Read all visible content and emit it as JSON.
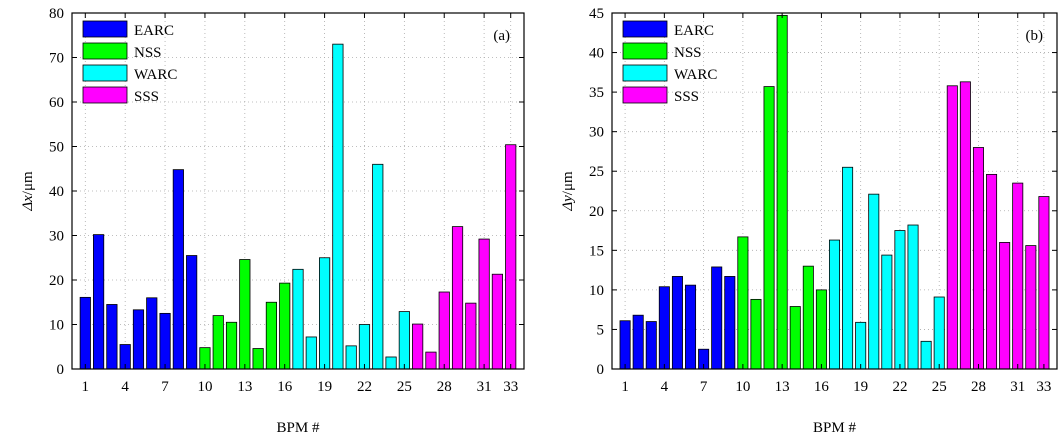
{
  "colors": {
    "EARC": "#0000ff",
    "NSS": "#00ff00",
    "WARC": "#00ffff",
    "SSS": "#ff00ff",
    "grid": "#aaaaaa",
    "axis": "#000000"
  },
  "chart_data": [
    {
      "type": "bar",
      "panel_label": "(a)",
      "xlabel": "BPM #",
      "ylabel_symbol": "Δx",
      "ylabel_unit": "/μm",
      "ylim": [
        0,
        80
      ],
      "yticks": [
        0,
        10,
        20,
        30,
        40,
        50,
        60,
        70,
        80
      ],
      "xlim": [
        0,
        34
      ],
      "xticks": [
        1,
        4,
        7,
        10,
        13,
        16,
        19,
        22,
        25,
        28,
        31,
        33
      ],
      "grid": true,
      "legend_position": "top-left",
      "series": [
        {
          "name": "EARC",
          "x": [
            1,
            2,
            3,
            4,
            5,
            6,
            7,
            8,
            9
          ],
          "values": [
            16.1,
            30.2,
            14.5,
            5.5,
            13.3,
            16.0,
            12.5,
            44.8,
            25.5
          ]
        },
        {
          "name": "NSS",
          "x": [
            10,
            11,
            12,
            13,
            14,
            15,
            16
          ],
          "values": [
            4.8,
            12.0,
            10.5,
            24.6,
            4.6,
            15.0,
            19.3
          ]
        },
        {
          "name": "WARC",
          "x": [
            17,
            18,
            19,
            20,
            21,
            22,
            23,
            24,
            25
          ],
          "values": [
            22.4,
            7.2,
            25.0,
            73.0,
            5.2,
            10.0,
            46.0,
            2.7,
            12.9
          ]
        },
        {
          "name": "SSS",
          "x": [
            26,
            27,
            28,
            29,
            30,
            31,
            32,
            33
          ],
          "values": [
            10.1,
            3.8,
            17.3,
            32.0,
            14.8,
            29.2,
            21.3,
            50.4
          ]
        }
      ]
    },
    {
      "type": "bar",
      "panel_label": "(b)",
      "xlabel": "BPM #",
      "ylabel_symbol": "Δy",
      "ylabel_unit": "/μm",
      "ylim": [
        0,
        45
      ],
      "yticks": [
        0,
        5,
        10,
        15,
        20,
        25,
        30,
        35,
        40,
        45
      ],
      "xlim": [
        0,
        34
      ],
      "xticks": [
        1,
        4,
        7,
        10,
        13,
        16,
        19,
        22,
        25,
        28,
        31,
        33
      ],
      "grid": true,
      "legend_position": "top-left",
      "series": [
        {
          "name": "EARC",
          "x": [
            1,
            2,
            3,
            4,
            5,
            6,
            7,
            8,
            9
          ],
          "values": [
            6.1,
            6.8,
            6.0,
            10.4,
            11.7,
            10.6,
            2.5,
            12.9,
            11.7
          ]
        },
        {
          "name": "NSS",
          "x": [
            10,
            11,
            12,
            13,
            14,
            15,
            16
          ],
          "values": [
            16.7,
            8.8,
            35.7,
            44.7,
            7.9,
            13.0,
            10.0
          ]
        },
        {
          "name": "WARC",
          "x": [
            17,
            18,
            19,
            20,
            21,
            22,
            23,
            24,
            25
          ],
          "values": [
            16.3,
            25.5,
            5.9,
            22.1,
            14.4,
            17.5,
            18.2,
            3.5,
            9.1
          ]
        },
        {
          "name": "SSS",
          "x": [
            26,
            27,
            28,
            29,
            30,
            31,
            32,
            33
          ],
          "values": [
            35.8,
            36.3,
            28.0,
            24.6,
            16.0,
            23.5,
            15.6,
            21.8
          ]
        }
      ]
    }
  ]
}
